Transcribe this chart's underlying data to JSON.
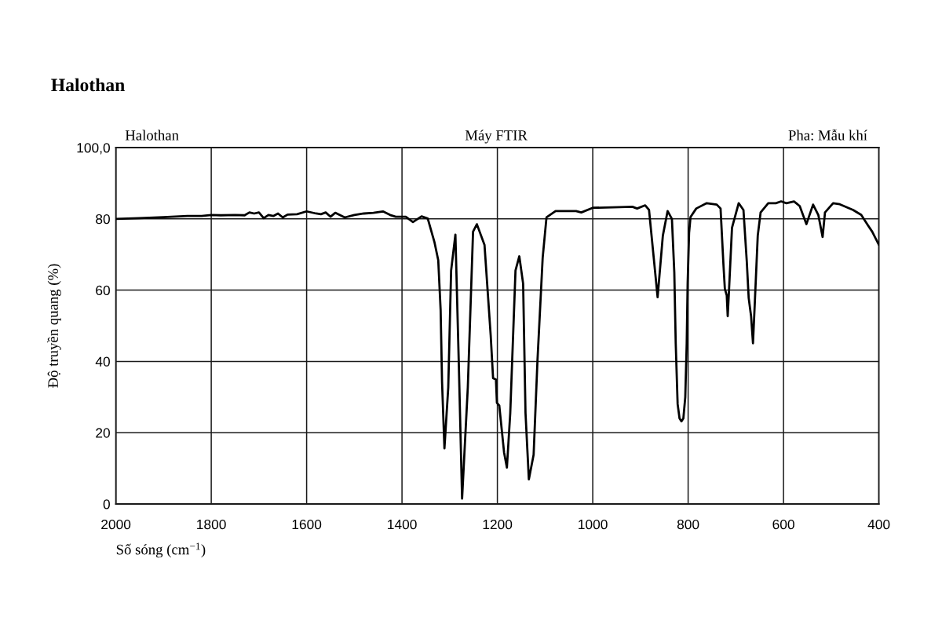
{
  "chart_data": {
    "type": "line",
    "title": "Halothan",
    "annotations": [
      "Halothan",
      "Máy FTIR",
      "Pha: Mẫu khí"
    ],
    "xlabel": "Số sóng (cm$^{−1}$)",
    "ylabel": "Độ truyền quang (%)",
    "x": [
      2000,
      1950,
      1900,
      1850,
      1820,
      1800,
      1780,
      1750,
      1730,
      1720,
      1710,
      1700,
      1690,
      1680,
      1670,
      1660,
      1650,
      1640,
      1620,
      1600,
      1580,
      1570,
      1560,
      1550,
      1540,
      1520,
      1500,
      1480,
      1460,
      1440,
      1425,
      1413,
      1392,
      1377,
      1359,
      1346,
      1332,
      1324,
      1319,
      1316,
      1311,
      1303,
      1297,
      1288,
      1281,
      1274,
      1262,
      1251,
      1243,
      1227,
      1214,
      1209,
      1203,
      1201,
      1196,
      1186,
      1180,
      1173,
      1162,
      1154,
      1146,
      1141,
      1134,
      1124,
      1116,
      1105,
      1097,
      1078,
      1035,
      1024,
      1000,
      944,
      917,
      907,
      890,
      882,
      874,
      864,
      853,
      843,
      834,
      829,
      826,
      822,
      818,
      814,
      810,
      806,
      803,
      801,
      798,
      795,
      783,
      761,
      740,
      732,
      726,
      723,
      719,
      717,
      714,
      708,
      694,
      684,
      677,
      673,
      668,
      664,
      660,
      654,
      648,
      632,
      616,
      605,
      594,
      578,
      566,
      552,
      538,
      527,
      518,
      513,
      496,
      482,
      454,
      437,
      423,
      414,
      400
    ],
    "values": [
      80.0,
      80.2,
      80.5,
      80.8,
      80.8,
      81.1,
      81.0,
      81.1,
      81.0,
      81.8,
      81.5,
      81.8,
      80.2,
      81.1,
      80.8,
      81.5,
      80.4,
      81.2,
      81.3,
      82.1,
      81.5,
      81.3,
      81.8,
      80.6,
      81.7,
      80.4,
      81.1,
      81.5,
      81.7,
      82.1,
      81.1,
      80.6,
      80.6,
      79.1,
      80.7,
      80.1,
      73.5,
      68.4,
      54.5,
      34.2,
      15.6,
      32.7,
      65.5,
      75.6,
      40,
      1.5,
      32.7,
      76.4,
      78.5,
      72.7,
      47.3,
      35.3,
      34.9,
      28.4,
      27.6,
      14.5,
      10.2,
      25.5,
      65.5,
      69.5,
      61.8,
      25.5,
      6.9,
      13.8,
      40,
      69.1,
      80.4,
      82.2,
      82.2,
      81.8,
      83.1,
      83.3,
      83.4,
      82.9,
      83.8,
      82.5,
      71.6,
      58,
      75.3,
      82.2,
      80,
      65,
      45,
      28,
      24,
      23.2,
      24,
      30,
      45,
      62,
      76,
      80.5,
      82.9,
      84.4,
      84,
      82.9,
      67.3,
      60.4,
      58.5,
      52.7,
      60.7,
      77.5,
      84.4,
      82.5,
      68,
      57.8,
      52.7,
      45.1,
      57,
      75.3,
      81.8,
      84.4,
      84.4,
      84.9,
      84.4,
      84.9,
      83.6,
      78.5,
      84,
      81.1,
      74.9,
      81.8,
      84.4,
      84.1,
      82.5,
      81.1,
      78.2,
      76.4,
      72.7
    ],
    "color": "#000000",
    "xlim": [
      2000,
      400
    ],
    "xticks": [
      2000,
      1800,
      1600,
      1400,
      1200,
      1000,
      800,
      600,
      400
    ],
    "ylim": [
      0,
      100
    ],
    "yticks": [
      0,
      20,
      40,
      60,
      80,
      {
        "value": 100,
        "label": "100,0"
      }
    ],
    "grid": true
  }
}
